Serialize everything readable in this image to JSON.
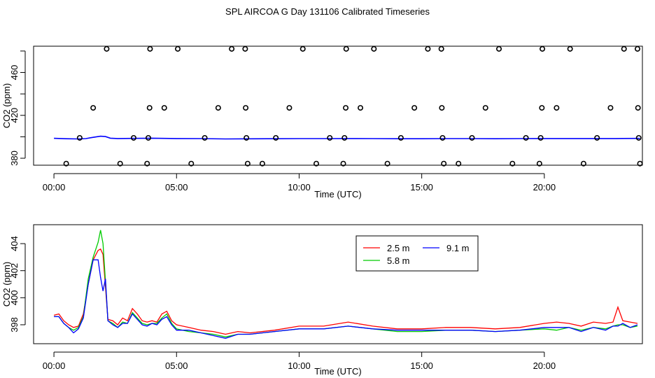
{
  "title": "SPL AIRCOA G  Day 131106  Calibrated Timeseries",
  "chart_data": [
    {
      "type": "scatter",
      "xlabel": "Time (UTC)",
      "ylabel": "CO2 (ppm)",
      "xlim": [
        -0.83,
        24.0
      ],
      "ylim": [
        373.5,
        484.5
      ],
      "xticks": [
        0,
        5,
        10,
        15,
        20
      ],
      "xtick_labels": [
        "00:00",
        "05:00",
        "10:00",
        "15:00",
        "20:00"
      ],
      "yticks": [
        380,
        420,
        460
      ],
      "yticks_minor": [
        400,
        440,
        480
      ],
      "ytick_labels": [
        "380",
        "420",
        "460"
      ],
      "points": [
        {
          "x": 0.5,
          "y": 375
        },
        {
          "x": 1.05,
          "y": 399
        },
        {
          "x": 1.6,
          "y": 427
        },
        {
          "x": 2.15,
          "y": 482
        },
        {
          "x": 2.7,
          "y": 375
        },
        {
          "x": 3.25,
          "y": 399
        },
        {
          "x": 3.8,
          "y": 375
        },
        {
          "x": 3.85,
          "y": 399
        },
        {
          "x": 3.9,
          "y": 427
        },
        {
          "x": 3.92,
          "y": 482
        },
        {
          "x": 4.5,
          "y": 427
        },
        {
          "x": 5.05,
          "y": 482
        },
        {
          "x": 5.6,
          "y": 375
        },
        {
          "x": 6.15,
          "y": 399
        },
        {
          "x": 6.7,
          "y": 427
        },
        {
          "x": 7.25,
          "y": 482
        },
        {
          "x": 7.8,
          "y": 482
        },
        {
          "x": 7.82,
          "y": 427
        },
        {
          "x": 7.85,
          "y": 399
        },
        {
          "x": 7.9,
          "y": 375
        },
        {
          "x": 8.5,
          "y": 375
        },
        {
          "x": 9.05,
          "y": 399
        },
        {
          "x": 9.6,
          "y": 427
        },
        {
          "x": 10.15,
          "y": 482
        },
        {
          "x": 10.7,
          "y": 375
        },
        {
          "x": 11.25,
          "y": 399
        },
        {
          "x": 11.8,
          "y": 375
        },
        {
          "x": 11.85,
          "y": 399
        },
        {
          "x": 11.9,
          "y": 427
        },
        {
          "x": 11.92,
          "y": 482
        },
        {
          "x": 12.5,
          "y": 427
        },
        {
          "x": 13.05,
          "y": 482
        },
        {
          "x": 13.6,
          "y": 375
        },
        {
          "x": 14.15,
          "y": 399
        },
        {
          "x": 14.7,
          "y": 427
        },
        {
          "x": 15.25,
          "y": 482
        },
        {
          "x": 15.8,
          "y": 482
        },
        {
          "x": 15.82,
          "y": 427
        },
        {
          "x": 15.85,
          "y": 399
        },
        {
          "x": 15.9,
          "y": 375
        },
        {
          "x": 16.5,
          "y": 375
        },
        {
          "x": 17.05,
          "y": 399
        },
        {
          "x": 17.6,
          "y": 427
        },
        {
          "x": 18.15,
          "y": 482
        },
        {
          "x": 18.7,
          "y": 375
        },
        {
          "x": 19.25,
          "y": 399
        },
        {
          "x": 19.8,
          "y": 375
        },
        {
          "x": 19.85,
          "y": 399
        },
        {
          "x": 19.9,
          "y": 427
        },
        {
          "x": 19.92,
          "y": 482
        },
        {
          "x": 20.5,
          "y": 427
        },
        {
          "x": 21.05,
          "y": 482
        },
        {
          "x": 21.6,
          "y": 375
        },
        {
          "x": 22.15,
          "y": 399
        },
        {
          "x": 22.7,
          "y": 427
        },
        {
          "x": 23.25,
          "y": 482
        },
        {
          "x": 23.8,
          "y": 482
        },
        {
          "x": 23.82,
          "y": 427
        },
        {
          "x": 23.85,
          "y": 399
        },
        {
          "x": 23.9,
          "y": 375
        }
      ],
      "series": [
        {
          "name": "",
          "color": "#0000ff",
          "x": [
            0,
            0.5,
            1.0,
            1.3,
            1.6,
            1.9,
            2.1,
            2.3,
            2.6,
            3.2,
            4.0,
            5.0,
            6.0,
            7.0,
            8.0,
            9.0,
            10.0,
            11.0,
            12.0,
            13.0,
            14.0,
            15.0,
            16.0,
            17.0,
            18.0,
            19.0,
            20.0,
            21.0,
            22.0,
            22.9,
            23.9
          ],
          "y": [
            398.6,
            398.2,
            398.0,
            398.3,
            399.5,
            400.5,
            400.2,
            398.7,
            398.4,
            398.5,
            398.7,
            398.4,
            398.3,
            398.0,
            398.1,
            398.2,
            398.3,
            398.3,
            398.4,
            398.3,
            398.2,
            398.2,
            398.3,
            398.3,
            398.2,
            398.3,
            398.4,
            398.4,
            398.4,
            398.4,
            398.5
          ]
        }
      ]
    },
    {
      "type": "line",
      "xlabel": "Time (UTC)",
      "ylabel": "CO2 (ppm)",
      "xlim": [
        -0.83,
        24.0
      ],
      "ylim": [
        396.6,
        405.4
      ],
      "xticks": [
        0,
        5,
        10,
        15,
        20
      ],
      "xtick_labels": [
        "00:00",
        "05:00",
        "10:00",
        "15:00",
        "20:00"
      ],
      "yticks": [
        398,
        400,
        402,
        404
      ],
      "ytick_labels": [
        "398",
        "400",
        "402",
        "404"
      ],
      "legend": {
        "placement": "top-center",
        "entries": [
          {
            "name": "2.5 m",
            "color": "#ff0000"
          },
          {
            "name": "5.8 m",
            "color": "#00cc00"
          },
          {
            "name": "9.1 m",
            "color": "#0000ff"
          }
        ]
      },
      "x": [
        0.0,
        0.2,
        0.4,
        0.6,
        0.8,
        1.0,
        1.2,
        1.4,
        1.6,
        1.8,
        1.9,
        2.0,
        2.1,
        2.2,
        2.4,
        2.6,
        2.8,
        3.0,
        3.2,
        3.4,
        3.6,
        3.8,
        4.0,
        4.2,
        4.4,
        4.6,
        4.8,
        5.0,
        5.5,
        6.0,
        6.5,
        7.0,
        7.5,
        8.0,
        9.0,
        10.0,
        11.0,
        12.0,
        13.0,
        14.0,
        15.0,
        16.0,
        17.0,
        18.0,
        19.0,
        20.0,
        20.5,
        21.0,
        21.5,
        22.0,
        22.5,
        22.8,
        23.0,
        23.2,
        23.5,
        23.8
      ],
      "series": [
        {
          "name": "2.5 m",
          "color": "#ff0000",
          "y": [
            398.7,
            398.8,
            398.3,
            398.0,
            397.8,
            397.9,
            398.8,
            401.0,
            402.8,
            403.5,
            403.6,
            403.2,
            400.8,
            398.4,
            398.3,
            398.0,
            398.5,
            398.3,
            399.2,
            398.8,
            398.3,
            398.2,
            398.3,
            398.2,
            398.8,
            399.0,
            398.3,
            398.0,
            397.8,
            397.6,
            397.5,
            397.3,
            397.5,
            397.4,
            397.6,
            397.9,
            397.9,
            398.2,
            397.9,
            397.7,
            397.7,
            397.8,
            397.8,
            397.7,
            397.8,
            398.1,
            398.2,
            398.1,
            397.9,
            398.2,
            398.1,
            398.2,
            399.3,
            398.3,
            398.2,
            398.1
          ]
        },
        {
          "name": "5.8 m",
          "color": "#00cc00",
          "y": [
            398.6,
            398.6,
            398.1,
            397.8,
            397.6,
            397.8,
            398.6,
            401.4,
            403.0,
            404.1,
            405.0,
            404.0,
            401.2,
            398.3,
            398.1,
            397.8,
            398.2,
            398.1,
            398.9,
            398.5,
            398.1,
            398.0,
            398.1,
            398.1,
            398.5,
            398.8,
            398.1,
            397.7,
            397.5,
            397.4,
            397.3,
            397.1,
            397.3,
            397.3,
            397.5,
            397.7,
            397.7,
            397.9,
            397.7,
            397.5,
            397.5,
            397.6,
            397.6,
            397.5,
            397.6,
            397.7,
            397.6,
            397.8,
            397.6,
            397.8,
            397.7,
            397.9,
            398.0,
            398.0,
            397.8,
            397.9
          ]
        },
        {
          "name": "9.1 m",
          "color": "#0000ff",
          "y": [
            398.6,
            398.6,
            398.1,
            397.8,
            397.4,
            397.7,
            398.5,
            401.0,
            402.8,
            402.8,
            401.5,
            400.5,
            401.4,
            398.3,
            398.0,
            397.8,
            398.1,
            398.1,
            398.8,
            398.4,
            398.0,
            397.9,
            398.1,
            398.0,
            398.4,
            398.6,
            398.0,
            397.6,
            397.6,
            397.4,
            397.2,
            397.0,
            397.3,
            397.3,
            397.5,
            397.7,
            397.7,
            397.9,
            397.7,
            397.6,
            397.6,
            397.6,
            397.6,
            397.5,
            397.6,
            397.8,
            397.8,
            397.8,
            397.5,
            397.8,
            397.6,
            397.9,
            397.9,
            398.1,
            397.8,
            398.0
          ]
        }
      ]
    }
  ]
}
